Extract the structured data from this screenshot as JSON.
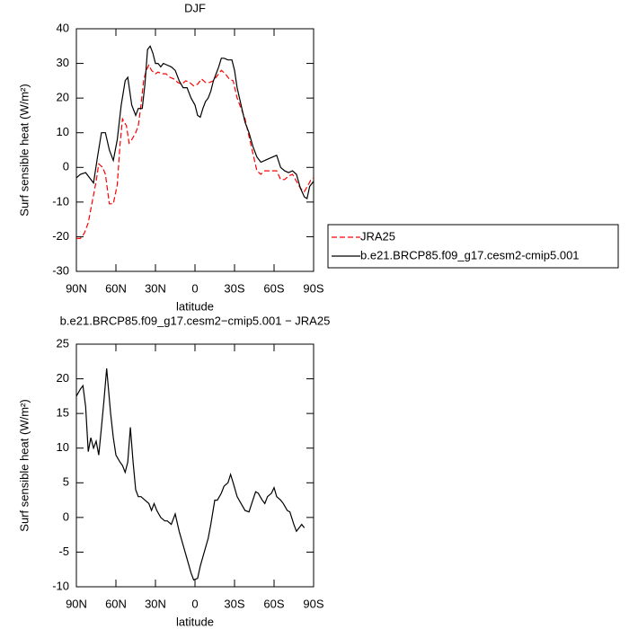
{
  "chart_data": [
    {
      "type": "line",
      "title": "DJF",
      "xlabel": "latitude",
      "ylabel": "Surf sensible heat (W/m²)",
      "xlim": [
        90,
        -90
      ],
      "ylim": [
        -30,
        40
      ],
      "xticks": [
        {
          "value": 90,
          "label": "90N"
        },
        {
          "value": 60,
          "label": "60N"
        },
        {
          "value": 30,
          "label": "30N"
        },
        0,
        {
          "value": -30,
          "label": "30S"
        },
        {
          "value": -60,
          "label": "60S"
        },
        {
          "value": -90,
          "label": "90S"
        }
      ],
      "yticks": [
        -30,
        -20,
        -10,
        0,
        10,
        20,
        30,
        40
      ],
      "legend": "outside-right",
      "series": [
        {
          "name": "JRA25",
          "color": "#ff0000",
          "linestyle": "dashed",
          "x": [
            90,
            87,
            84,
            81,
            78,
            75,
            73,
            70,
            68,
            65,
            62,
            59,
            57,
            55,
            52,
            50,
            48,
            45,
            43,
            41,
            39,
            37,
            35,
            33,
            30,
            28,
            25,
            22,
            19,
            16,
            13,
            10,
            7,
            4,
            1,
            -2,
            -5,
            -8,
            -11,
            -14,
            -17,
            -20,
            -23,
            -26,
            -29,
            -32,
            -35,
            -38,
            -41,
            -44,
            -47,
            -50,
            -53,
            -56,
            -59,
            -62,
            -65,
            -68,
            -71,
            -74,
            -77,
            -80,
            -83,
            -86,
            -88,
            -90
          ],
          "values": [
            -20.5,
            -20.5,
            -19,
            -16,
            -10,
            -4,
            1,
            0,
            -2,
            -10.5,
            -10.5,
            -5,
            6,
            14,
            12,
            7,
            8,
            10,
            12,
            18,
            25,
            28,
            29.5,
            28,
            27,
            27.5,
            27,
            27,
            26,
            25.5,
            24.5,
            24,
            25,
            24.5,
            23.5,
            24,
            25.5,
            24.5,
            24.5,
            25,
            26.5,
            28,
            27,
            25.5,
            25,
            20,
            17,
            14,
            9,
            4,
            -1,
            -2,
            -1,
            -1,
            -1,
            -1,
            -3.5,
            -3.5,
            -2.5,
            -2,
            -4,
            -6,
            -7,
            -5,
            -3.5,
            -3
          ]
        },
        {
          "name": "b.e21.BRCP85.f09_g17.cesm2-cmip5.001",
          "color": "#000000",
          "linestyle": "solid",
          "x": [
            90,
            87,
            83,
            80,
            77,
            74,
            71,
            68,
            65,
            62,
            59,
            56,
            53,
            51,
            48,
            45,
            43,
            40,
            38,
            36,
            34,
            32,
            30,
            28,
            26,
            24,
            21,
            18,
            15,
            12,
            9,
            6,
            3,
            0,
            -2,
            -4,
            -6,
            -8,
            -10,
            -12,
            -14,
            -16,
            -18,
            -20,
            -22,
            -25,
            -28,
            -30,
            -32,
            -35,
            -38,
            -41,
            -44,
            -47,
            -50,
            -53,
            -56,
            -59,
            -62,
            -65,
            -68,
            -71,
            -74,
            -77,
            -80,
            -83,
            -85,
            -87,
            -90
          ],
          "values": [
            -3,
            -2,
            -1.5,
            -3,
            -4.5,
            3,
            10,
            10,
            5,
            2,
            8,
            18,
            25,
            26,
            18,
            15,
            17,
            17,
            24,
            34,
            35,
            33,
            30,
            30,
            29,
            30,
            29.5,
            29,
            28,
            25,
            23,
            23,
            20,
            18,
            15,
            14.5,
            17,
            19,
            20,
            22,
            25,
            27,
            29,
            31.5,
            31.5,
            31,
            31,
            28,
            23,
            18,
            13,
            10,
            6,
            3,
            1.5,
            2,
            2.5,
            3,
            3.5,
            0,
            -1,
            -1.5,
            -1,
            -2,
            -6,
            -8.5,
            -9,
            -5.5,
            -4
          ]
        }
      ]
    },
    {
      "type": "line",
      "title": "b.e21.BRCP85.f09_g17.cesm2−cmip5.001 − JRA25",
      "xlabel": "latitude",
      "ylabel": "Surf sensible heat (W/m²)",
      "xlim": [
        90,
        -90
      ],
      "ylim": [
        -10,
        25
      ],
      "xticks": [
        {
          "value": 90,
          "label": "90N"
        },
        {
          "value": 60,
          "label": "60N"
        },
        {
          "value": 30,
          "label": "30N"
        },
        0,
        {
          "value": -30,
          "label": "30S"
        },
        {
          "value": -60,
          "label": "60S"
        },
        {
          "value": -90,
          "label": "90S"
        }
      ],
      "yticks": [
        -10,
        -5,
        0,
        5,
        10,
        15,
        20,
        25
      ],
      "color": "#000000",
      "linestyle": "solid",
      "x": [
        90,
        87,
        85,
        83,
        81,
        79,
        77,
        75,
        73,
        71,
        69,
        67,
        64,
        62,
        60,
        57,
        55,
        53,
        51,
        49,
        47,
        45,
        43,
        41,
        38,
        35,
        33,
        31,
        29,
        26,
        23,
        21,
        18,
        15,
        12,
        9,
        6,
        3,
        1,
        -2,
        -4,
        -7,
        -10,
        -12,
        -15,
        -17,
        -20,
        -22,
        -25,
        -27,
        -29,
        -32,
        -35,
        -38,
        -41,
        -43,
        -46,
        -48,
        -51,
        -53,
        -55,
        -58,
        -60,
        -62,
        -65,
        -67,
        -70,
        -72,
        -75,
        -77,
        -79,
        -81,
        -83
      ],
      "values": [
        17.5,
        18.5,
        19,
        16,
        9.5,
        11.5,
        10,
        11,
        9,
        13,
        17,
        21.5,
        15,
        11.5,
        9,
        8,
        7.5,
        6.5,
        8,
        13,
        8,
        4,
        3,
        3,
        2.5,
        2,
        1,
        2,
        1,
        0,
        -0.5,
        -0.5,
        -1,
        0.5,
        -2,
        -4,
        -6,
        -8,
        -9,
        -8.8,
        -7,
        -5,
        -3,
        -1,
        2.5,
        2.5,
        3.5,
        4.5,
        5,
        6.2,
        5,
        3,
        2,
        1,
        0.8,
        2,
        3.7,
        3.5,
        2.5,
        2,
        3,
        3.5,
        4.3,
        3,
        2.5,
        2,
        1,
        0.8,
        -1,
        -2,
        -1.5,
        -1,
        -1.5
      ]
    }
  ]
}
